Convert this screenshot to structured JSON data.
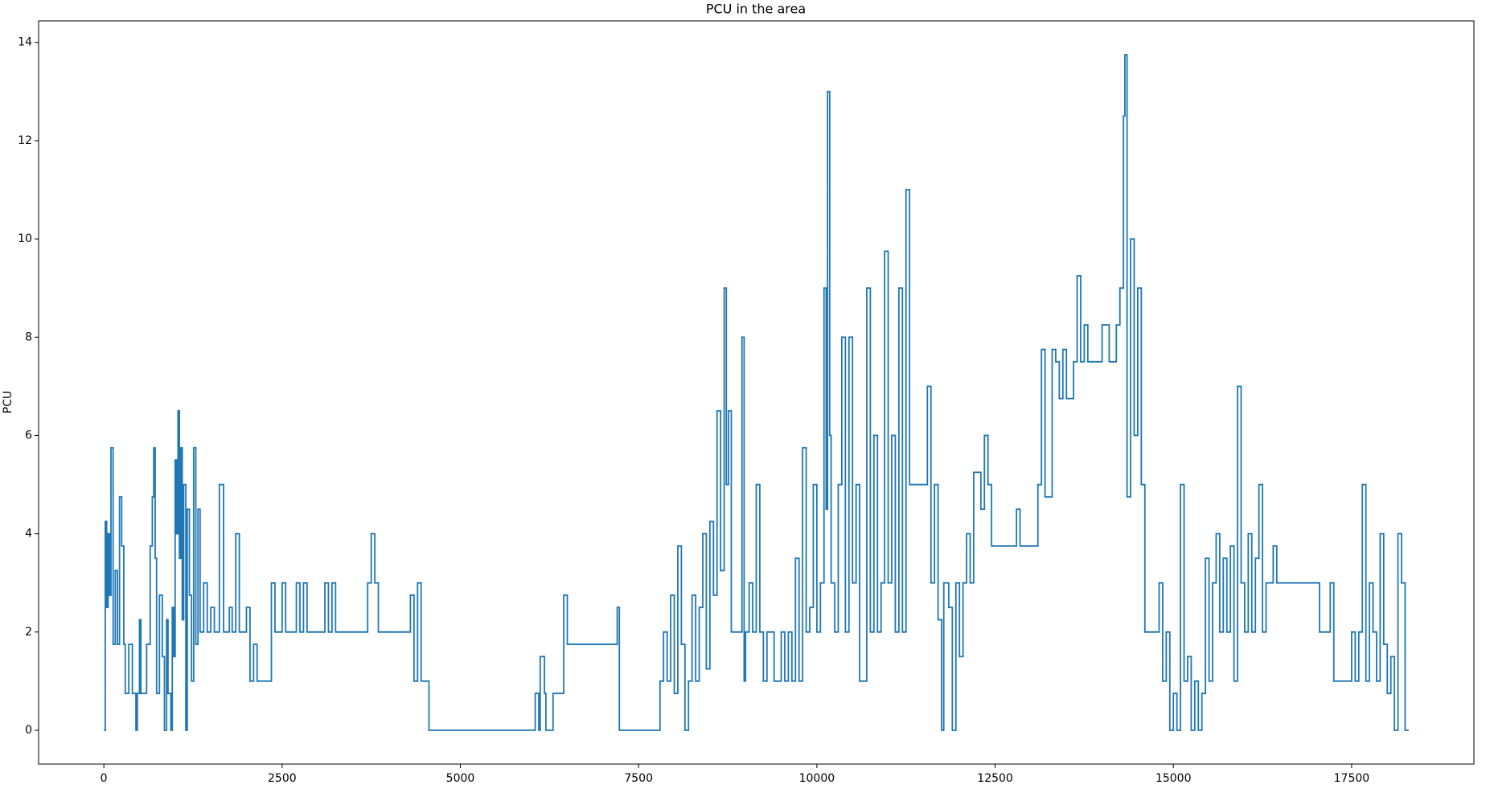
{
  "chart_data": {
    "type": "step",
    "title": "PCU in the area",
    "y_label": "PCU",
    "x": [
      0,
      20,
      40,
      60,
      80,
      100,
      130,
      160,
      190,
      220,
      250,
      280,
      300,
      350,
      400,
      450,
      470,
      500,
      520,
      600,
      650,
      680,
      700,
      720,
      740,
      780,
      820,
      850,
      880,
      900,
      940,
      960,
      980,
      1000,
      1020,
      1040,
      1060,
      1080,
      1100,
      1120,
      1150,
      1170,
      1200,
      1230,
      1260,
      1290,
      1320,
      1350,
      1400,
      1450,
      1500,
      1550,
      1620,
      1680,
      1760,
      1800,
      1850,
      1900,
      2000,
      2050,
      2100,
      2150,
      2200,
      2350,
      2400,
      2500,
      2550,
      2700,
      2750,
      2800,
      2850,
      3100,
      3150,
      3200,
      3250,
      3700,
      3750,
      3800,
      3850,
      4300,
      4350,
      4400,
      4450,
      4500,
      4560,
      4600,
      6050,
      6100,
      6120,
      6180,
      6200,
      6300,
      6400,
      6450,
      6500,
      7150,
      7200,
      7230,
      7750,
      7800,
      7850,
      7900,
      7950,
      8000,
      8050,
      8100,
      8150,
      8200,
      8250,
      8300,
      8350,
      8400,
      8450,
      8500,
      8550,
      8600,
      8650,
      8700,
      8730,
      8760,
      8800,
      8850,
      8950,
      8980,
      9000,
      9050,
      9100,
      9150,
      9200,
      9250,
      9300,
      9400,
      9500,
      9550,
      9600,
      9650,
      9700,
      9750,
      9800,
      9850,
      9900,
      9950,
      10000,
      10050,
      10100,
      10130,
      10150,
      10180,
      10200,
      10250,
      10300,
      10350,
      10400,
      10450,
      10500,
      10550,
      10600,
      10700,
      10750,
      10800,
      10850,
      10900,
      10950,
      11000,
      11050,
      11100,
      11150,
      11200,
      11250,
      11300,
      11500,
      11550,
      11600,
      11650,
      11700,
      11750,
      11780,
      11850,
      11900,
      11950,
      12000,
      12050,
      12100,
      12150,
      12200,
      12300,
      12350,
      12400,
      12450,
      12500,
      12600,
      12800,
      12850,
      13000,
      13100,
      13150,
      13200,
      13300,
      13350,
      13400,
      13450,
      13500,
      13600,
      13650,
      13700,
      13750,
      13800,
      14000,
      14100,
      14200,
      14250,
      14300,
      14320,
      14350,
      14400,
      14450,
      14500,
      14550,
      14600,
      14700,
      14800,
      14850,
      14900,
      14950,
      15000,
      15050,
      15100,
      15150,
      15200,
      15250,
      15300,
      15350,
      15400,
      15450,
      15500,
      15550,
      15600,
      15650,
      15700,
      15750,
      15800,
      15850,
      15900,
      15950,
      16000,
      16050,
      16100,
      16150,
      16200,
      16250,
      16300,
      16400,
      16450,
      17000,
      17050,
      17100,
      17200,
      17250,
      17450,
      17500,
      17550,
      17600,
      17650,
      17700,
      17750,
      17800,
      17850,
      17900,
      17950,
      18000,
      18050,
      18100,
      18150,
      18200,
      18250,
      18300
    ],
    "series": [
      {
        "name": "PCU",
        "color": "#1f77b4",
        "values": [
          0,
          4.25,
          2.5,
          4,
          2.75,
          5.75,
          1.75,
          3.25,
          1.75,
          4.75,
          3.75,
          1.75,
          0.75,
          1.75,
          0.75,
          0,
          0.75,
          2.25,
          0.75,
          1.75,
          3.75,
          4.75,
          5.75,
          3.5,
          0.75,
          2.75,
          1.5,
          0,
          2.25,
          0.75,
          0,
          2.5,
          1.5,
          5.5,
          4,
          6.5,
          3.5,
          5.75,
          2.25,
          5,
          0,
          4.5,
          2.75,
          1,
          5.75,
          1.75,
          4.5,
          2,
          3,
          2,
          2.5,
          2,
          5,
          2,
          2.5,
          2,
          4,
          2,
          2.5,
          1,
          1.75,
          1,
          1,
          3,
          2,
          3,
          2,
          3,
          2,
          3,
          2,
          3,
          2,
          3,
          2,
          3,
          4,
          3,
          2,
          2.75,
          1,
          3,
          1,
          1,
          0,
          0,
          0.75,
          0,
          1.5,
          0.75,
          0,
          0.75,
          0.75,
          2.75,
          1.75,
          1.75,
          2.5,
          0,
          0,
          1,
          2,
          1,
          2.75,
          0.75,
          3.75,
          1.75,
          0,
          1,
          2.75,
          1,
          2.5,
          4,
          1.25,
          4.25,
          2.75,
          6.5,
          3.25,
          9,
          5,
          6.5,
          2,
          2,
          8,
          1,
          2,
          3,
          2,
          5,
          2,
          1,
          2,
          1,
          2,
          1,
          2,
          1,
          3.5,
          1,
          5.75,
          2,
          2.5,
          5,
          2,
          3,
          9,
          4.5,
          13,
          6,
          3,
          2,
          5,
          8,
          2,
          8,
          3,
          5,
          1,
          9,
          2,
          6,
          2,
          3,
          9.75,
          3,
          6,
          2,
          9,
          2,
          11,
          5,
          5,
          7,
          3,
          5,
          2.25,
          0,
          3,
          2.5,
          0,
          3,
          1.5,
          3,
          4,
          3,
          5.25,
          4.5,
          6,
          5,
          3.75,
          3.75,
          3.75,
          4.5,
          3.75,
          3.75,
          5,
          7.75,
          4.75,
          7.75,
          7.5,
          6.75,
          7.75,
          6.75,
          7.5,
          9.25,
          7.5,
          8.25,
          7.5,
          8.25,
          7.5,
          8.25,
          9,
          12.5,
          13.75,
          4.75,
          10,
          6,
          9,
          5,
          2,
          2,
          3,
          1,
          2,
          0,
          0.75,
          0,
          5,
          1,
          1.5,
          0,
          1,
          0,
          0.75,
          3.5,
          1,
          3,
          4,
          2,
          3.5,
          2,
          3.75,
          1,
          7,
          3,
          2,
          4,
          2,
          3.5,
          5,
          2,
          3,
          3.75,
          3,
          3,
          2,
          2,
          3,
          1,
          1,
          2,
          1,
          2,
          5,
          1,
          3,
          2,
          1,
          4,
          1.75,
          0.75,
          1.5,
          0,
          4,
          3,
          0,
          0
        ]
      }
    ],
    "xlim": [
      -915,
      19215
    ],
    "ylim": [
      -0.6875,
      14.4375
    ],
    "xticks": [
      0,
      2500,
      5000,
      7500,
      10000,
      12500,
      15000,
      17500
    ],
    "yticks": [
      0,
      2,
      4,
      6,
      8,
      10,
      12,
      14
    ]
  }
}
